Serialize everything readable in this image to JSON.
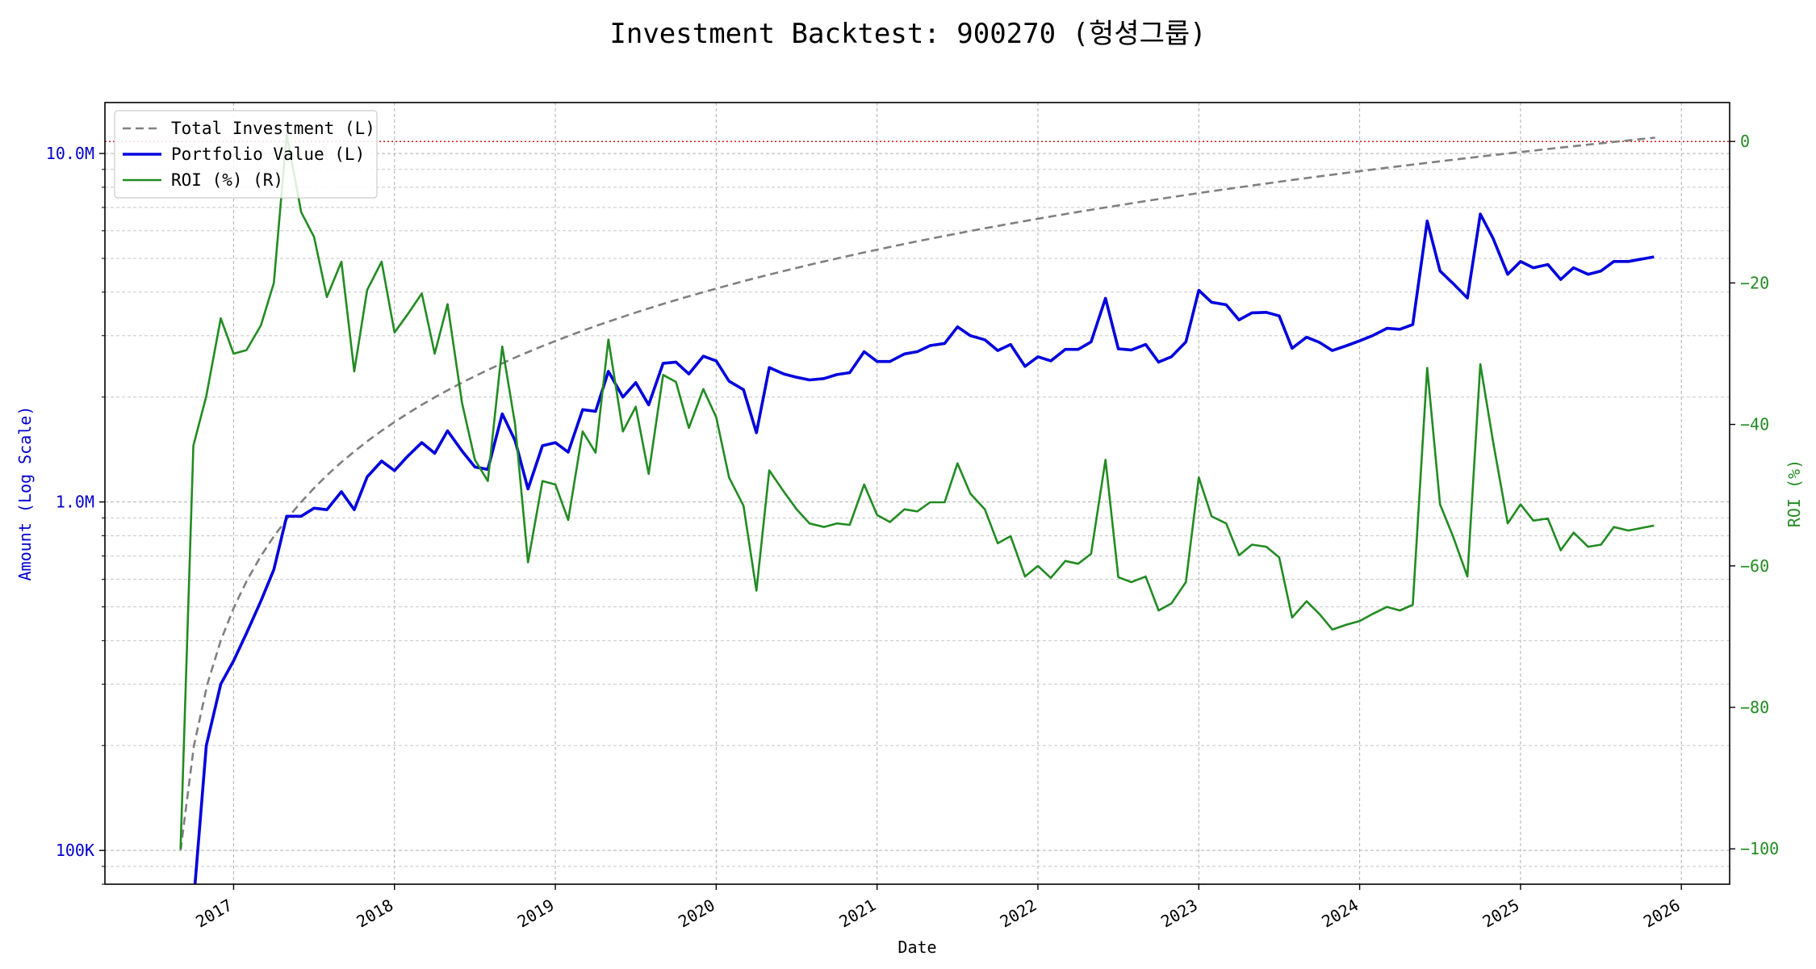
{
  "chart_data": {
    "type": "line",
    "title": "Investment Backtest: 900270 (헝셩그룹)",
    "xlabel": "Date",
    "ylabel_left": "Amount (Log Scale)",
    "ylabel_right": "ROI (%)",
    "left_axis": {
      "scale": "log",
      "ylim": [
        80000,
        14000000
      ],
      "tick_values": [
        100000,
        1000000,
        10000000
      ],
      "tick_labels": [
        "100K",
        "1.0M",
        "10.0M"
      ],
      "color": "#0000cc"
    },
    "right_axis": {
      "scale": "linear",
      "ylim": [
        -105,
        5.5
      ],
      "tick_values": [
        0,
        -20,
        -40,
        -60,
        -80,
        -100
      ],
      "tick_labels": [
        "0",
        "−20",
        "−40",
        "−60",
        "−80",
        "−100"
      ],
      "color": "#228b22"
    },
    "x_axis": {
      "xlim": [
        2016.2,
        2026.3
      ],
      "tick_values": [
        2017,
        2018,
        2019,
        2020,
        2021,
        2022,
        2023,
        2024,
        2025,
        2026
      ],
      "tick_labels": [
        "2017",
        "2018",
        "2019",
        "2020",
        "2021",
        "2022",
        "2023",
        "2024",
        "2025",
        "2026"
      ]
    },
    "grid": true,
    "legend_position": "top-left",
    "zero_reference_line": {
      "value": 0,
      "axis": "right",
      "color": "#cc0000",
      "style": "dotted"
    },
    "series": [
      {
        "name": "Total Investment (L)",
        "axis": "left",
        "color": "#808080",
        "style": "dashed",
        "start": [
          2016.67,
          100000
        ],
        "end": [
          2025.83,
          11100000
        ],
        "monthly_step": 100000
      },
      {
        "name": "Portfolio Value (L)",
        "axis": "left",
        "color": "#0000dd",
        "style": "solid",
        "points": [
          [
            2016.75,
            70000
          ],
          [
            2016.83,
            200000
          ],
          [
            2016.92,
            300000
          ],
          [
            2017.0,
            350000
          ],
          [
            2017.08,
            420000
          ],
          [
            2017.17,
            520000
          ],
          [
            2017.25,
            640000
          ],
          [
            2017.33,
            910000
          ],
          [
            2017.42,
            910000
          ],
          [
            2017.5,
            960000
          ],
          [
            2017.58,
            950000
          ],
          [
            2017.67,
            1070000
          ],
          [
            2017.75,
            950000
          ],
          [
            2017.83,
            1180000
          ],
          [
            2017.92,
            1310000
          ],
          [
            2018.0,
            1230000
          ],
          [
            2018.08,
            1350000
          ],
          [
            2018.17,
            1480000
          ],
          [
            2018.25,
            1380000
          ],
          [
            2018.33,
            1600000
          ],
          [
            2018.42,
            1400000
          ],
          [
            2018.5,
            1260000
          ],
          [
            2018.58,
            1240000
          ],
          [
            2018.67,
            1790000
          ],
          [
            2018.75,
            1500000
          ],
          [
            2018.83,
            1090000
          ],
          [
            2018.92,
            1450000
          ],
          [
            2019.0,
            1480000
          ],
          [
            2019.08,
            1390000
          ],
          [
            2019.17,
            1840000
          ],
          [
            2019.25,
            1820000
          ],
          [
            2019.33,
            2370000
          ],
          [
            2019.42,
            2000000
          ],
          [
            2019.5,
            2200000
          ],
          [
            2019.58,
            1900000
          ],
          [
            2019.67,
            2500000
          ],
          [
            2019.75,
            2520000
          ],
          [
            2019.83,
            2330000
          ],
          [
            2019.92,
            2620000
          ],
          [
            2020.0,
            2540000
          ],
          [
            2020.08,
            2220000
          ],
          [
            2020.17,
            2100000
          ],
          [
            2020.25,
            1580000
          ],
          [
            2020.33,
            2430000
          ],
          [
            2020.42,
            2330000
          ],
          [
            2020.5,
            2280000
          ],
          [
            2020.58,
            2240000
          ],
          [
            2020.67,
            2260000
          ],
          [
            2020.75,
            2320000
          ],
          [
            2020.83,
            2350000
          ],
          [
            2020.92,
            2700000
          ],
          [
            2021.0,
            2530000
          ],
          [
            2021.08,
            2530000
          ],
          [
            2021.17,
            2660000
          ],
          [
            2021.25,
            2700000
          ],
          [
            2021.33,
            2810000
          ],
          [
            2021.42,
            2850000
          ],
          [
            2021.5,
            3180000
          ],
          [
            2021.58,
            3000000
          ],
          [
            2021.67,
            2920000
          ],
          [
            2021.75,
            2720000
          ],
          [
            2021.83,
            2830000
          ],
          [
            2021.92,
            2450000
          ],
          [
            2022.0,
            2610000
          ],
          [
            2022.08,
            2540000
          ],
          [
            2022.17,
            2740000
          ],
          [
            2022.25,
            2740000
          ],
          [
            2022.33,
            2880000
          ],
          [
            2022.42,
            3840000
          ],
          [
            2022.5,
            2750000
          ],
          [
            2022.58,
            2730000
          ],
          [
            2022.67,
            2830000
          ],
          [
            2022.75,
            2520000
          ],
          [
            2022.83,
            2610000
          ],
          [
            2022.92,
            2880000
          ],
          [
            2023.0,
            4050000
          ],
          [
            2023.08,
            3740000
          ],
          [
            2023.17,
            3680000
          ],
          [
            2023.25,
            3330000
          ],
          [
            2023.33,
            3490000
          ],
          [
            2023.42,
            3500000
          ],
          [
            2023.5,
            3420000
          ],
          [
            2023.58,
            2760000
          ],
          [
            2023.67,
            2970000
          ],
          [
            2023.75,
            2870000
          ],
          [
            2023.83,
            2720000
          ],
          [
            2023.92,
            2810000
          ],
          [
            2024.0,
            2900000
          ],
          [
            2024.08,
            3000000
          ],
          [
            2024.17,
            3150000
          ],
          [
            2024.25,
            3130000
          ],
          [
            2024.33,
            3230000
          ],
          [
            2024.42,
            6400000
          ],
          [
            2024.5,
            4600000
          ],
          [
            2024.58,
            4240000
          ],
          [
            2024.67,
            3850000
          ],
          [
            2024.75,
            6700000
          ],
          [
            2024.83,
            5700000
          ],
          [
            2024.92,
            4500000
          ],
          [
            2025.0,
            4900000
          ],
          [
            2025.08,
            4700000
          ],
          [
            2025.17,
            4800000
          ],
          [
            2025.25,
            4350000
          ],
          [
            2025.33,
            4700000
          ],
          [
            2025.42,
            4500000
          ],
          [
            2025.5,
            4600000
          ],
          [
            2025.58,
            4900000
          ],
          [
            2025.67,
            4900000
          ],
          [
            2025.83,
            5050000
          ]
        ]
      },
      {
        "name": "ROI (%) (R)",
        "axis": "right",
        "color": "#228b22",
        "style": "solid",
        "points": [
          [
            2016.67,
            -100
          ],
          [
            2016.75,
            -43
          ],
          [
            2016.83,
            -36
          ],
          [
            2016.92,
            -25
          ],
          [
            2017.0,
            -30
          ],
          [
            2017.08,
            -29.5
          ],
          [
            2017.17,
            -26
          ],
          [
            2017.25,
            -20
          ],
          [
            2017.33,
            1
          ],
          [
            2017.42,
            -10
          ],
          [
            2017.5,
            -13.5
          ],
          [
            2017.58,
            -22
          ],
          [
            2017.67,
            -17
          ],
          [
            2017.75,
            -32.5
          ],
          [
            2017.83,
            -21
          ],
          [
            2017.92,
            -17
          ],
          [
            2018.0,
            -27
          ],
          [
            2018.08,
            -24.5
          ],
          [
            2018.17,
            -21.5
          ],
          [
            2018.25,
            -30
          ],
          [
            2018.33,
            -23
          ],
          [
            2018.42,
            -37
          ],
          [
            2018.5,
            -45
          ],
          [
            2018.58,
            -48
          ],
          [
            2018.67,
            -29
          ],
          [
            2018.75,
            -40
          ],
          [
            2018.83,
            -59.5
          ],
          [
            2018.92,
            -48
          ],
          [
            2019.0,
            -48.5
          ],
          [
            2019.08,
            -53.5
          ],
          [
            2019.17,
            -41
          ],
          [
            2019.25,
            -44
          ],
          [
            2019.33,
            -28
          ],
          [
            2019.42,
            -41
          ],
          [
            2019.5,
            -37.5
          ],
          [
            2019.58,
            -47
          ],
          [
            2019.67,
            -33
          ],
          [
            2019.75,
            -34
          ],
          [
            2019.83,
            -40.5
          ],
          [
            2019.92,
            -35
          ],
          [
            2020.0,
            -39
          ],
          [
            2020.08,
            -47.5
          ],
          [
            2020.17,
            -51.5
          ],
          [
            2020.25,
            -63.5
          ],
          [
            2020.33,
            -46.5
          ],
          [
            2020.42,
            -49.5
          ],
          [
            2020.5,
            -52
          ],
          [
            2020.58,
            -54
          ],
          [
            2020.67,
            -54.5
          ],
          [
            2020.75,
            -54
          ],
          [
            2020.83,
            -54.2
          ],
          [
            2020.92,
            -48.5
          ],
          [
            2021.0,
            -52.8
          ],
          [
            2021.08,
            -53.8
          ],
          [
            2021.17,
            -52
          ],
          [
            2021.25,
            -52.3
          ],
          [
            2021.33,
            -51
          ],
          [
            2021.42,
            -51
          ],
          [
            2021.5,
            -45.5
          ],
          [
            2021.58,
            -49.8
          ],
          [
            2021.67,
            -52
          ],
          [
            2021.75,
            -56.8
          ],
          [
            2021.83,
            -55.8
          ],
          [
            2021.92,
            -61.5
          ],
          [
            2022.0,
            -60
          ],
          [
            2022.08,
            -61.7
          ],
          [
            2022.17,
            -59.3
          ],
          [
            2022.25,
            -59.7
          ],
          [
            2022.33,
            -58.3
          ],
          [
            2022.42,
            -45
          ],
          [
            2022.5,
            -61.6
          ],
          [
            2022.58,
            -62.3
          ],
          [
            2022.67,
            -61.5
          ],
          [
            2022.75,
            -66.3
          ],
          [
            2022.83,
            -65.3
          ],
          [
            2022.92,
            -62.3
          ],
          [
            2023.0,
            -47.5
          ],
          [
            2023.08,
            -53
          ],
          [
            2023.17,
            -54
          ],
          [
            2023.25,
            -58.5
          ],
          [
            2023.33,
            -57
          ],
          [
            2023.42,
            -57.3
          ],
          [
            2023.5,
            -58.8
          ],
          [
            2023.58,
            -67.3
          ],
          [
            2023.67,
            -65
          ],
          [
            2023.75,
            -66.8
          ],
          [
            2023.83,
            -69
          ],
          [
            2023.92,
            -68.3
          ],
          [
            2024.0,
            -67.8
          ],
          [
            2024.08,
            -66.8
          ],
          [
            2024.17,
            -65.8
          ],
          [
            2024.25,
            -66.3
          ],
          [
            2024.33,
            -65.5
          ],
          [
            2024.42,
            -32
          ],
          [
            2024.5,
            -51.3
          ],
          [
            2024.58,
            -55.8
          ],
          [
            2024.67,
            -61.5
          ],
          [
            2024.75,
            -31.5
          ],
          [
            2024.83,
            -42.5
          ],
          [
            2024.92,
            -54
          ],
          [
            2025.0,
            -51.3
          ],
          [
            2025.08,
            -53.6
          ],
          [
            2025.17,
            -53.3
          ],
          [
            2025.25,
            -57.8
          ],
          [
            2025.33,
            -55.3
          ],
          [
            2025.42,
            -57.3
          ],
          [
            2025.5,
            -57
          ],
          [
            2025.58,
            -54.5
          ],
          [
            2025.67,
            -55
          ],
          [
            2025.83,
            -54.3
          ]
        ]
      }
    ]
  }
}
